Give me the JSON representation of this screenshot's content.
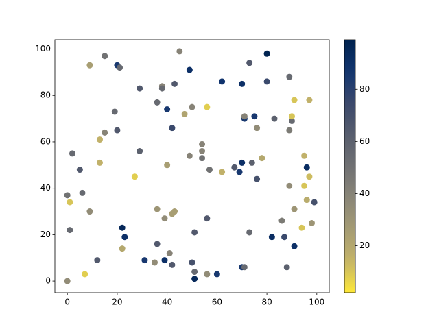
{
  "chart_data": {
    "type": "scatter",
    "x": [
      9,
      15,
      20,
      21,
      45,
      49,
      80,
      62,
      70,
      73,
      80,
      89,
      29,
      38,
      38,
      43,
      91,
      97,
      36,
      40,
      50,
      47,
      56,
      19,
      71,
      71,
      75,
      83,
      76,
      90,
      90,
      89,
      42,
      20,
      15,
      13,
      29,
      2,
      54,
      54,
      54,
      49,
      40,
      13,
      5,
      57,
      67,
      70,
      74,
      69,
      62,
      78,
      95,
      96,
      97,
      76,
      27,
      0,
      6,
      1,
      89,
      95,
      96,
      99,
      91,
      9,
      36,
      43,
      42,
      39,
      56,
      86,
      98,
      94,
      1,
      22,
      23,
      51,
      73,
      82,
      87,
      91,
      36,
      22,
      41,
      12,
      31,
      39,
      35,
      42,
      50,
      70,
      71,
      88,
      7,
      51,
      56,
      60,
      51,
      0
    ],
    "y": [
      93,
      97,
      93,
      92,
      99,
      91,
      98,
      86,
      85,
      94,
      86,
      88,
      83,
      84,
      83,
      85,
      78,
      78,
      77,
      74,
      75,
      72,
      75,
      73,
      70,
      71,
      71,
      70,
      66,
      69,
      71,
      65,
      66,
      65,
      64,
      61,
      56,
      55,
      59,
      56,
      53,
      54,
      50,
      51,
      48,
      48,
      49,
      51,
      51,
      47,
      47,
      53,
      54,
      49,
      45,
      44,
      45,
      37,
      38,
      34,
      41,
      41,
      35,
      34,
      31,
      30,
      31,
      30,
      29,
      27,
      27,
      26,
      25,
      23,
      22,
      23,
      19,
      21,
      21,
      19,
      19,
      15,
      16,
      14,
      12,
      9,
      9,
      9,
      8,
      7,
      8,
      6,
      6,
      6,
      3,
      4,
      3,
      3,
      1,
      0
    ],
    "c": [
      25,
      50,
      85,
      55,
      40,
      90,
      98,
      88,
      90,
      65,
      75,
      55,
      65,
      40,
      55,
      65,
      10,
      15,
      55,
      85,
      40,
      22,
      8,
      55,
      85,
      40,
      85,
      60,
      35,
      55,
      10,
      45,
      75,
      65,
      40,
      15,
      60,
      55,
      40,
      40,
      50,
      40,
      25,
      15,
      65,
      50,
      65,
      90,
      60,
      85,
      15,
      20,
      15,
      92,
      12,
      70,
      8,
      50,
      55,
      10,
      35,
      10,
      18,
      70,
      30,
      35,
      30,
      25,
      25,
      35,
      65,
      45,
      30,
      10,
      55,
      95,
      90,
      65,
      55,
      92,
      75,
      90,
      65,
      20,
      40,
      65,
      85,
      90,
      35,
      65,
      70,
      85,
      55,
      60,
      8,
      55,
      35,
      85,
      95,
      35
    ],
    "xlim": [
      -5,
      105
    ],
    "xticks": [
      0,
      20,
      40,
      60,
      80,
      100
    ],
    "ylim": [
      -5,
      104
    ],
    "yticks": [
      0,
      20,
      40,
      60,
      80,
      100
    ],
    "colorbar": {
      "clim": [
        2,
        99
      ],
      "ticks": [
        20,
        40,
        60,
        80
      ],
      "colormap": "cividis_r"
    }
  }
}
